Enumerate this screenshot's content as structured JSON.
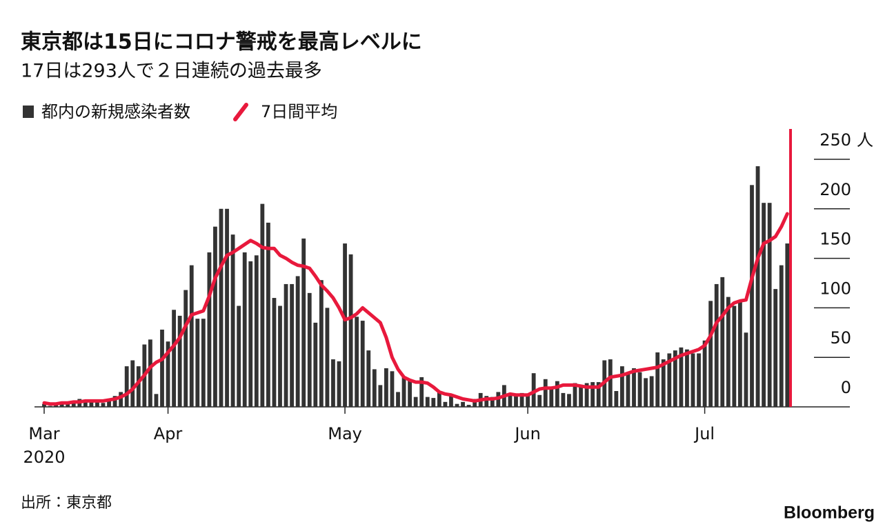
{
  "chart_data": {
    "type": "bar",
    "title": "東京都は15日にコロナ警戒を最高レベルに",
    "subtitle": "17日は293人で２日連続の過去最多",
    "source": "出所：東京都",
    "brand": "Bloomberg",
    "x_year_label": "2020",
    "y_unit": "人",
    "ylim": [
      0,
      250
    ],
    "yticks": [
      0,
      50,
      100,
      150,
      200,
      250
    ],
    "categories": [
      "Mar",
      null,
      null,
      null,
      null,
      null,
      null,
      null,
      null,
      null,
      null,
      null,
      null,
      null,
      null,
      null,
      null,
      null,
      null,
      null,
      null,
      "Apr",
      null,
      null,
      null,
      null,
      null,
      null,
      null,
      null,
      null,
      null,
      null,
      null,
      null,
      null,
      null,
      null,
      null,
      null,
      null,
      null,
      null,
      null,
      null,
      null,
      null,
      null,
      null,
      null,
      null,
      "May",
      null,
      null,
      null,
      null,
      null,
      null,
      null,
      null,
      null,
      null,
      null,
      null,
      null,
      null,
      null,
      null,
      null,
      null,
      null,
      null,
      null,
      null,
      null,
      null,
      null,
      null,
      null,
      null,
      null,
      null,
      "Jun",
      null,
      null,
      null,
      null,
      null,
      null,
      null,
      null,
      null,
      null,
      null,
      null,
      null,
      null,
      null,
      null,
      null,
      null,
      null,
      null,
      null,
      null,
      null,
      null,
      null,
      null,
      null,
      null,
      null,
      "Jul",
      null,
      null,
      null,
      null,
      null,
      null,
      null,
      null,
      null,
      null,
      null,
      null,
      null,
      null
    ],
    "series": [
      {
        "name": "都内の新規感染者数",
        "type": "bar",
        "color": "#333333",
        "values": [
          3,
          1,
          2,
          5,
          3,
          4,
          8,
          6,
          6,
          6,
          4,
          8,
          11,
          15,
          41,
          47,
          41,
          63,
          68,
          13,
          78,
          66,
          98,
          92,
          118,
          143,
          89,
          89,
          156,
          182,
          200,
          200,
          174,
          102,
          156,
          147,
          153,
          205,
          186,
          110,
          102,
          124,
          124,
          132,
          170,
          115,
          85,
          128,
          100,
          48,
          46,
          165,
          154,
          91,
          87,
          57,
          38,
          22,
          39,
          36,
          15,
          30,
          28,
          10,
          30,
          10,
          9,
          15,
          5,
          11,
          3,
          5,
          2,
          8,
          14,
          11,
          10,
          15,
          22,
          14,
          11,
          14,
          13,
          34,
          12,
          28,
          20,
          26,
          14,
          13,
          24,
          22,
          24,
          25,
          25,
          47,
          48,
          16,
          41,
          35,
          39,
          35,
          29,
          31,
          55,
          48,
          54,
          57,
          60,
          58,
          54,
          54,
          67,
          107,
          124,
          131,
          111,
          102,
          106,
          75,
          224,
          243,
          206,
          206,
          119,
          143,
          165
        ]
      },
      {
        "name": "7日間平均",
        "type": "line",
        "color": "#e8193c",
        "values": [
          4,
          3,
          3,
          4,
          4,
          5,
          5,
          6,
          6,
          6,
          6,
          7,
          8,
          10,
          13,
          18,
          25,
          32,
          40,
          45,
          48,
          55,
          62,
          70,
          82,
          93,
          95,
          97,
          112,
          130,
          142,
          153,
          156,
          160,
          164,
          168,
          165,
          161,
          160,
          160,
          153,
          150,
          146,
          143,
          142,
          140,
          132,
          123,
          117,
          110,
          100,
          88,
          90,
          94,
          100,
          95,
          90,
          85,
          70,
          50,
          38,
          30,
          27,
          25,
          25,
          24,
          20,
          15,
          13,
          12,
          10,
          8,
          7,
          6,
          7,
          8,
          8,
          9,
          11,
          13,
          12,
          12,
          12,
          15,
          18,
          19,
          19,
          20,
          22,
          22,
          22,
          21,
          20,
          20,
          20,
          25,
          30,
          31,
          32,
          34,
          36,
          37,
          38,
          39,
          40,
          43,
          46,
          49,
          52,
          54,
          56,
          58,
          62,
          72,
          85,
          92,
          100,
          105,
          107,
          108,
          130,
          150,
          165,
          168,
          172,
          182,
          195
        ]
      }
    ]
  }
}
